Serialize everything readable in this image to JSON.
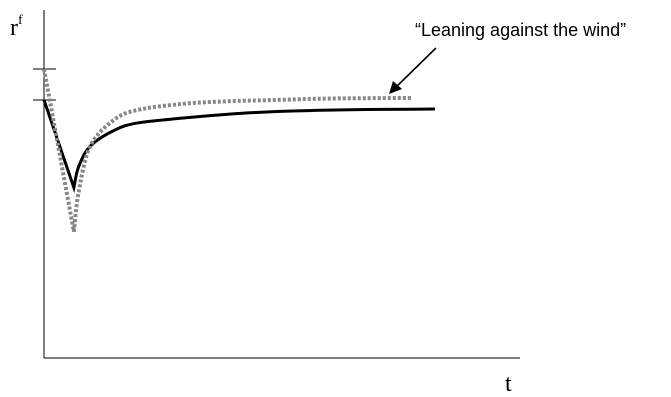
{
  "chart_data": {
    "type": "line",
    "ylabel": "r",
    "ylabel_superscript": "f",
    "xlabel": "t",
    "annotation": "“Leaning against the wind”",
    "series": [
      {
        "style": "solid",
        "color": "#000000",
        "points": [
          [
            0,
            1.0
          ],
          [
            1.3,
            0.66
          ],
          [
            1.5,
            0.74
          ],
          [
            2,
            0.82
          ],
          [
            3,
            0.88
          ],
          [
            4,
            0.91
          ],
          [
            6,
            0.93
          ],
          [
            8,
            0.945
          ],
          [
            10,
            0.955
          ],
          [
            12,
            0.96
          ],
          [
            14,
            0.963
          ],
          [
            16,
            0.964
          ],
          [
            17,
            0.965
          ]
        ]
      },
      {
        "style": "dotted",
        "color": "#888888",
        "points": [
          [
            0,
            1.12
          ],
          [
            1.3,
            0.49
          ],
          [
            1.5,
            0.64
          ],
          [
            2,
            0.82
          ],
          [
            3,
            0.92
          ],
          [
            4,
            0.96
          ],
          [
            6,
            0.985
          ],
          [
            8,
            0.995
          ],
          [
            10,
            1.0
          ],
          [
            12,
            1.005
          ],
          [
            14,
            1.007
          ],
          [
            16,
            1.008
          ]
        ]
      }
    ],
    "y_ticks": [
      1.0,
      1.12
    ]
  }
}
